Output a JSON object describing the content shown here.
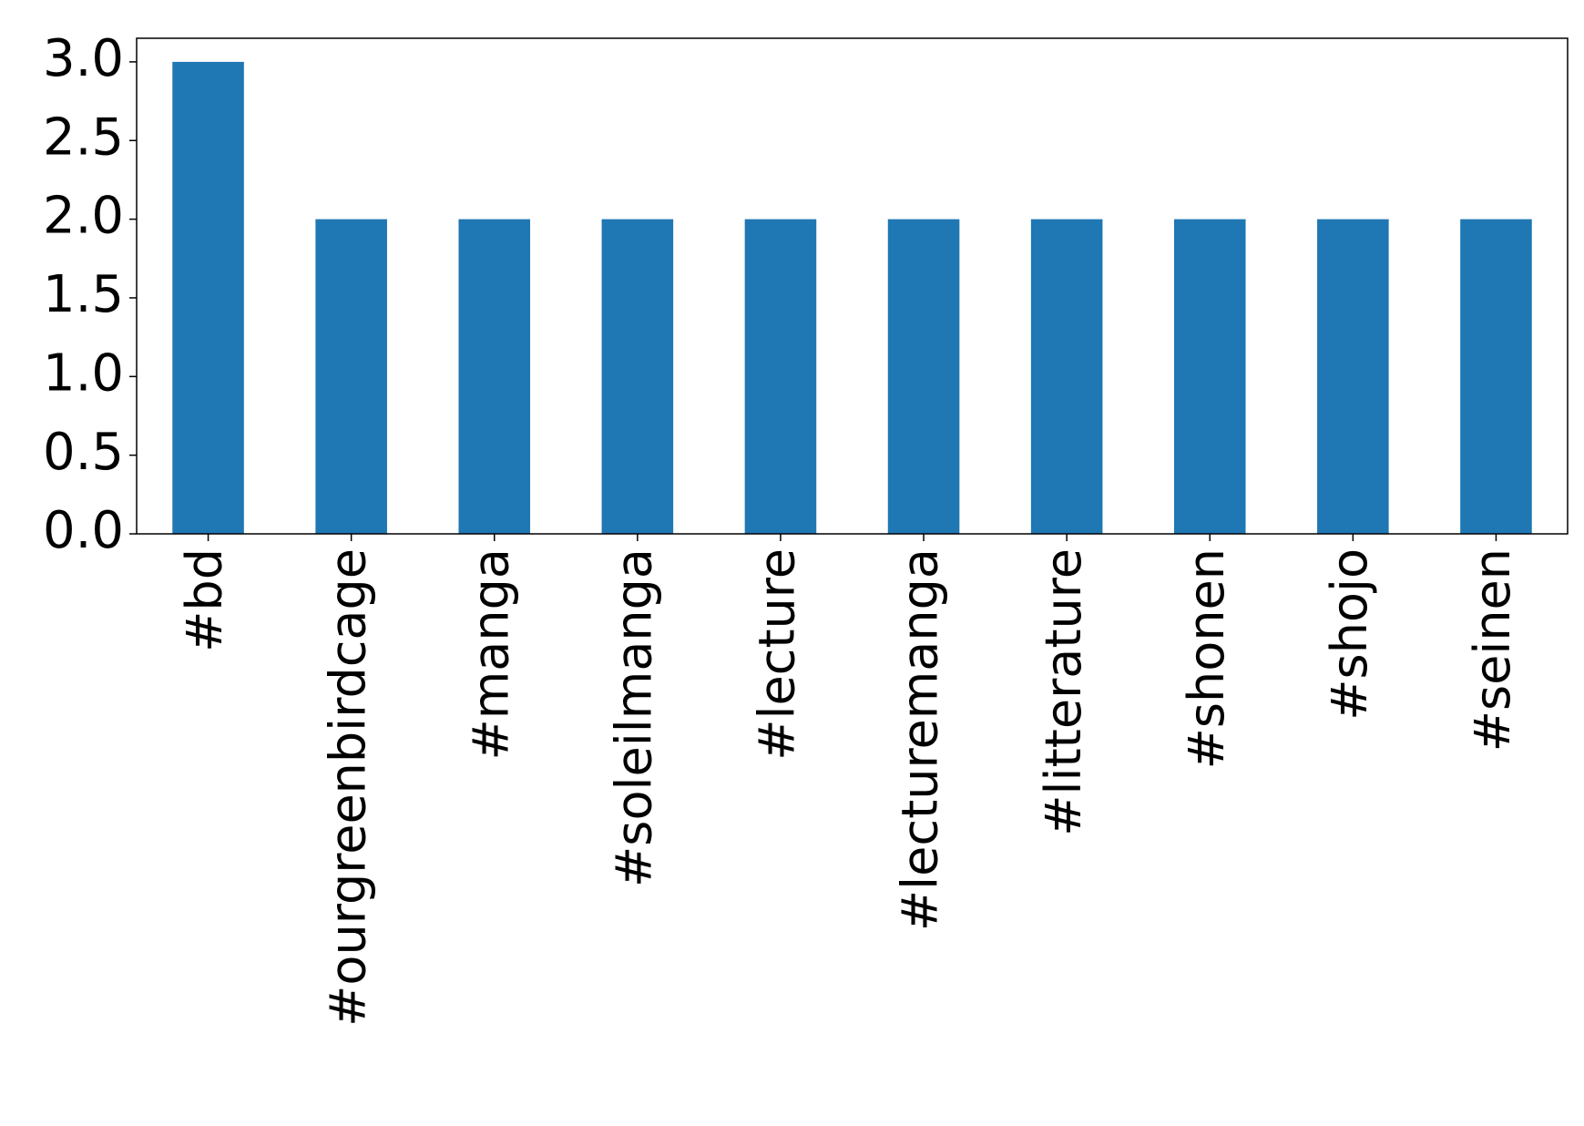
{
  "chart_data": {
    "type": "bar",
    "categories": [
      "#bd",
      "#ourgreenbirdcage",
      "#manga",
      "#soleilmanga",
      "#lecture",
      "#lecturemanga",
      "#litterature",
      "#shonen",
      "#shojo",
      "#seinen"
    ],
    "values": [
      3,
      2,
      2,
      2,
      2,
      2,
      2,
      2,
      2,
      2
    ],
    "color": "#1f77b4",
    "ylim": [
      0,
      3.15
    ],
    "yticks": [
      {
        "value": 0,
        "label": "0.0"
      },
      0.5,
      {
        "value": 1,
        "label": "1.0"
      },
      1.5,
      {
        "value": 2,
        "label": "2.0"
      },
      2.5,
      {
        "value": 3,
        "label": "3.0"
      }
    ],
    "grid": false
  }
}
